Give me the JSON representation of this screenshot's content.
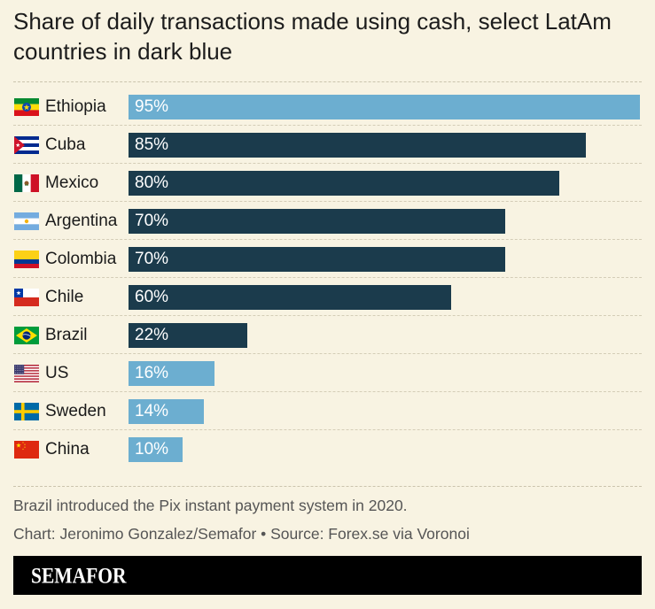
{
  "colors": {
    "background": "#f8f3e2",
    "footer": "#000000"
  },
  "chart_data": {
    "type": "bar",
    "horizontal": true,
    "title": "Share of daily transactions made using cash, select LatAm countries in dark blue",
    "categories": [
      "Ethiopia",
      "Cuba",
      "Mexico",
      "Argentina",
      "Colombia",
      "Chile",
      "Brazil",
      "US",
      "Sweden",
      "China"
    ],
    "values": [
      95,
      85,
      80,
      70,
      70,
      60,
      22,
      16,
      14,
      10
    ],
    "value_labels": [
      "95%",
      "85%",
      "80%",
      "70%",
      "70%",
      "60%",
      "22%",
      "16%",
      "14%",
      "10%"
    ],
    "bar_colors": [
      "#6caed0",
      "#1b3b4c",
      "#1b3b4c",
      "#1b3b4c",
      "#1b3b4c",
      "#1b3b4c",
      "#1b3b4c",
      "#6caed0",
      "#6caed0",
      "#6caed0"
    ],
    "flags": [
      "ethiopia-flag-icon",
      "cuba-flag-icon",
      "mexico-flag-icon",
      "argentina-flag-icon",
      "colombia-flag-icon",
      "chile-flag-icon",
      "brazil-flag-icon",
      "us-flag-icon",
      "sweden-flag-icon",
      "china-flag-icon"
    ],
    "xlim": [
      0,
      95
    ],
    "grid": false,
    "legend": false
  },
  "note": "Brazil introduced the Pix instant payment system in 2020.",
  "credit": "Chart: Jeronimo Gonzalez/Semafor • Source: Forex.se via Voronoi",
  "brand": "SEMAFOR"
}
